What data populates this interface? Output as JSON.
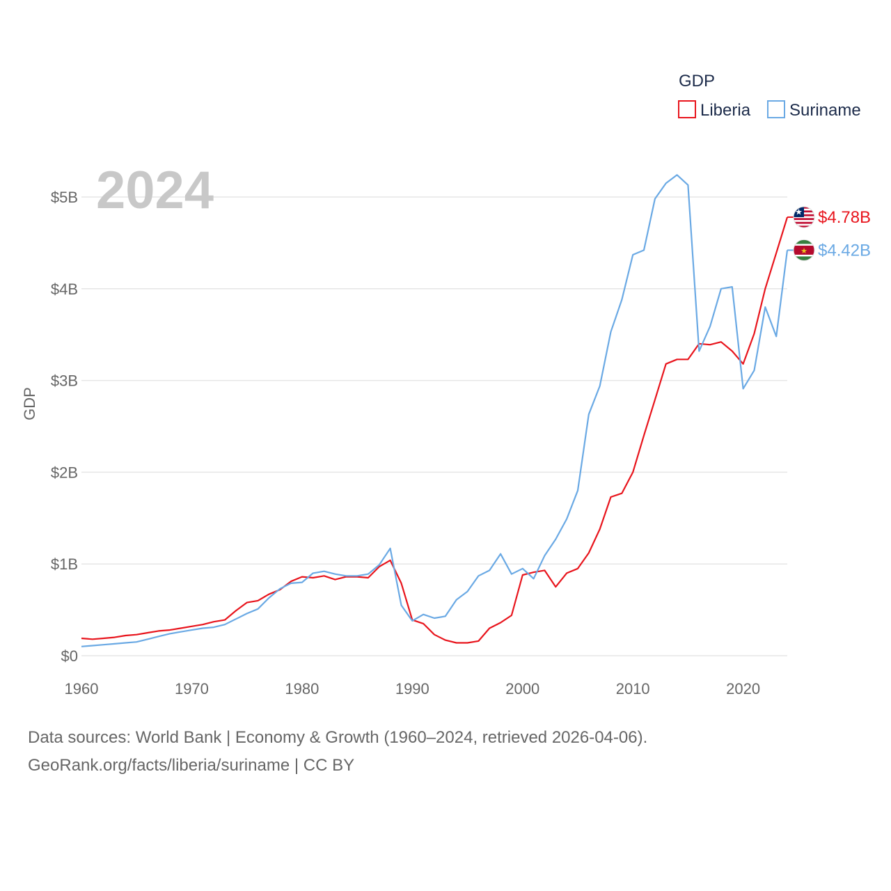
{
  "chart_data": {
    "type": "line",
    "year_label": "2024",
    "ylabel": "GDP",
    "legend_title": "GDP",
    "x": [
      1960,
      1961,
      1962,
      1963,
      1964,
      1965,
      1966,
      1967,
      1968,
      1969,
      1970,
      1971,
      1972,
      1973,
      1974,
      1975,
      1976,
      1977,
      1978,
      1979,
      1980,
      1981,
      1982,
      1983,
      1984,
      1985,
      1986,
      1987,
      1988,
      1989,
      1990,
      1991,
      1992,
      1993,
      1994,
      1995,
      1996,
      1997,
      1998,
      1999,
      2000,
      2001,
      2002,
      2003,
      2004,
      2005,
      2006,
      2007,
      2008,
      2009,
      2010,
      2011,
      2012,
      2013,
      2014,
      2015,
      2016,
      2017,
      2018,
      2019,
      2020,
      2021,
      2022,
      2023,
      2024
    ],
    "xlim": [
      1960,
      2024
    ],
    "ylim": [
      0,
      5.25
    ],
    "x_ticks": [
      1960,
      1970,
      1980,
      1990,
      2000,
      2010,
      2020
    ],
    "y_ticks": [
      {
        "value": 0,
        "label": "$0"
      },
      {
        "value": 1,
        "label": "$1B"
      },
      {
        "value": 2,
        "label": "$2B"
      },
      {
        "value": 3,
        "label": "$3B"
      },
      {
        "value": 4,
        "label": "$4B"
      },
      {
        "value": 5,
        "label": "$5B"
      }
    ],
    "series": [
      {
        "name": "Liberia",
        "color": "#e8141c",
        "end_label": "$4.78B",
        "flag": "liberia-flag-icon",
        "values": [
          0.19,
          0.18,
          0.19,
          0.2,
          0.22,
          0.23,
          0.25,
          0.27,
          0.28,
          0.3,
          0.32,
          0.34,
          0.37,
          0.39,
          0.49,
          0.58,
          0.6,
          0.67,
          0.72,
          0.81,
          0.86,
          0.85,
          0.87,
          0.83,
          0.86,
          0.86,
          0.85,
          0.97,
          1.04,
          0.79,
          0.39,
          0.35,
          0.23,
          0.17,
          0.14,
          0.14,
          0.16,
          0.3,
          0.36,
          0.44,
          0.88,
          0.91,
          0.93,
          0.75,
          0.9,
          0.95,
          1.12,
          1.38,
          1.73,
          1.77,
          2.0,
          2.4,
          2.79,
          3.18,
          3.23,
          3.23,
          3.4,
          3.39,
          3.42,
          3.32,
          3.18,
          3.51,
          4.0,
          4.39,
          4.78
        ]
      },
      {
        "name": "Suriname",
        "color": "#6aa9e4",
        "end_label": "$4.42B",
        "flag": "suriname-flag-icon",
        "values": [
          0.1,
          0.11,
          0.12,
          0.13,
          0.14,
          0.15,
          0.18,
          0.21,
          0.24,
          0.26,
          0.28,
          0.3,
          0.31,
          0.34,
          0.4,
          0.46,
          0.51,
          0.63,
          0.73,
          0.79,
          0.8,
          0.9,
          0.92,
          0.89,
          0.87,
          0.87,
          0.89,
          0.99,
          1.17,
          0.55,
          0.38,
          0.45,
          0.41,
          0.43,
          0.61,
          0.7,
          0.87,
          0.93,
          1.11,
          0.89,
          0.95,
          0.84,
          1.09,
          1.27,
          1.49,
          1.8,
          2.63,
          2.94,
          3.53,
          3.88,
          4.37,
          4.42,
          4.98,
          5.15,
          5.24,
          5.13,
          3.32,
          3.59,
          4.0,
          4.02,
          2.91,
          3.11,
          3.8,
          3.48,
          4.42
        ]
      }
    ]
  },
  "footer": {
    "line1": "Data sources: World Bank | Economy & Growth (1960–2024, retrieved 2026-04-06).",
    "line2": "GeoRank.org/facts/liberia/suriname | CC BY"
  }
}
